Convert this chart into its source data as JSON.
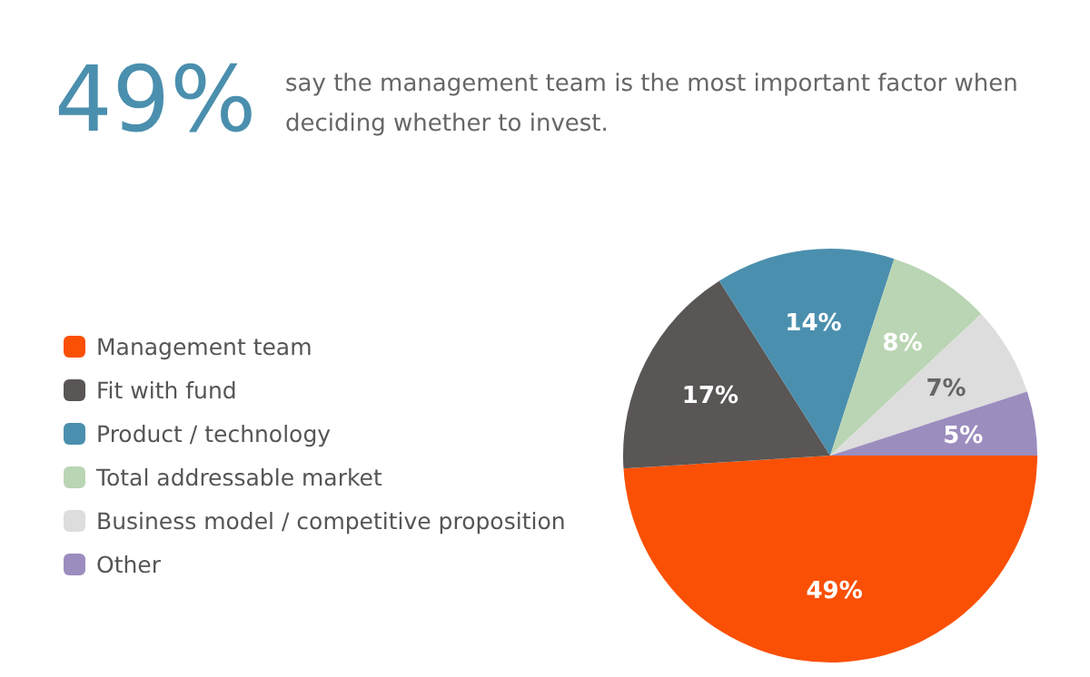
{
  "chart_data": {
    "type": "pie",
    "title": "49%",
    "subtitle": "say the management team is the most important factor when deciding whether to invest.",
    "categories": [
      "Management team",
      "Fit with fund",
      "Product / technology",
      "Total addressable market",
      "Business model / competitive proposition",
      "Other"
    ],
    "values": [
      49,
      17,
      14,
      8,
      7,
      5
    ],
    "colors": [
      "#fa5005",
      "#595655",
      "#4b8fae",
      "#bad5b3",
      "#dddddd",
      "#9c8dbf"
    ],
    "value_labels": [
      "49%",
      "17%",
      "14%",
      "8%",
      "7%",
      "5%"
    ],
    "legend": "left"
  }
}
